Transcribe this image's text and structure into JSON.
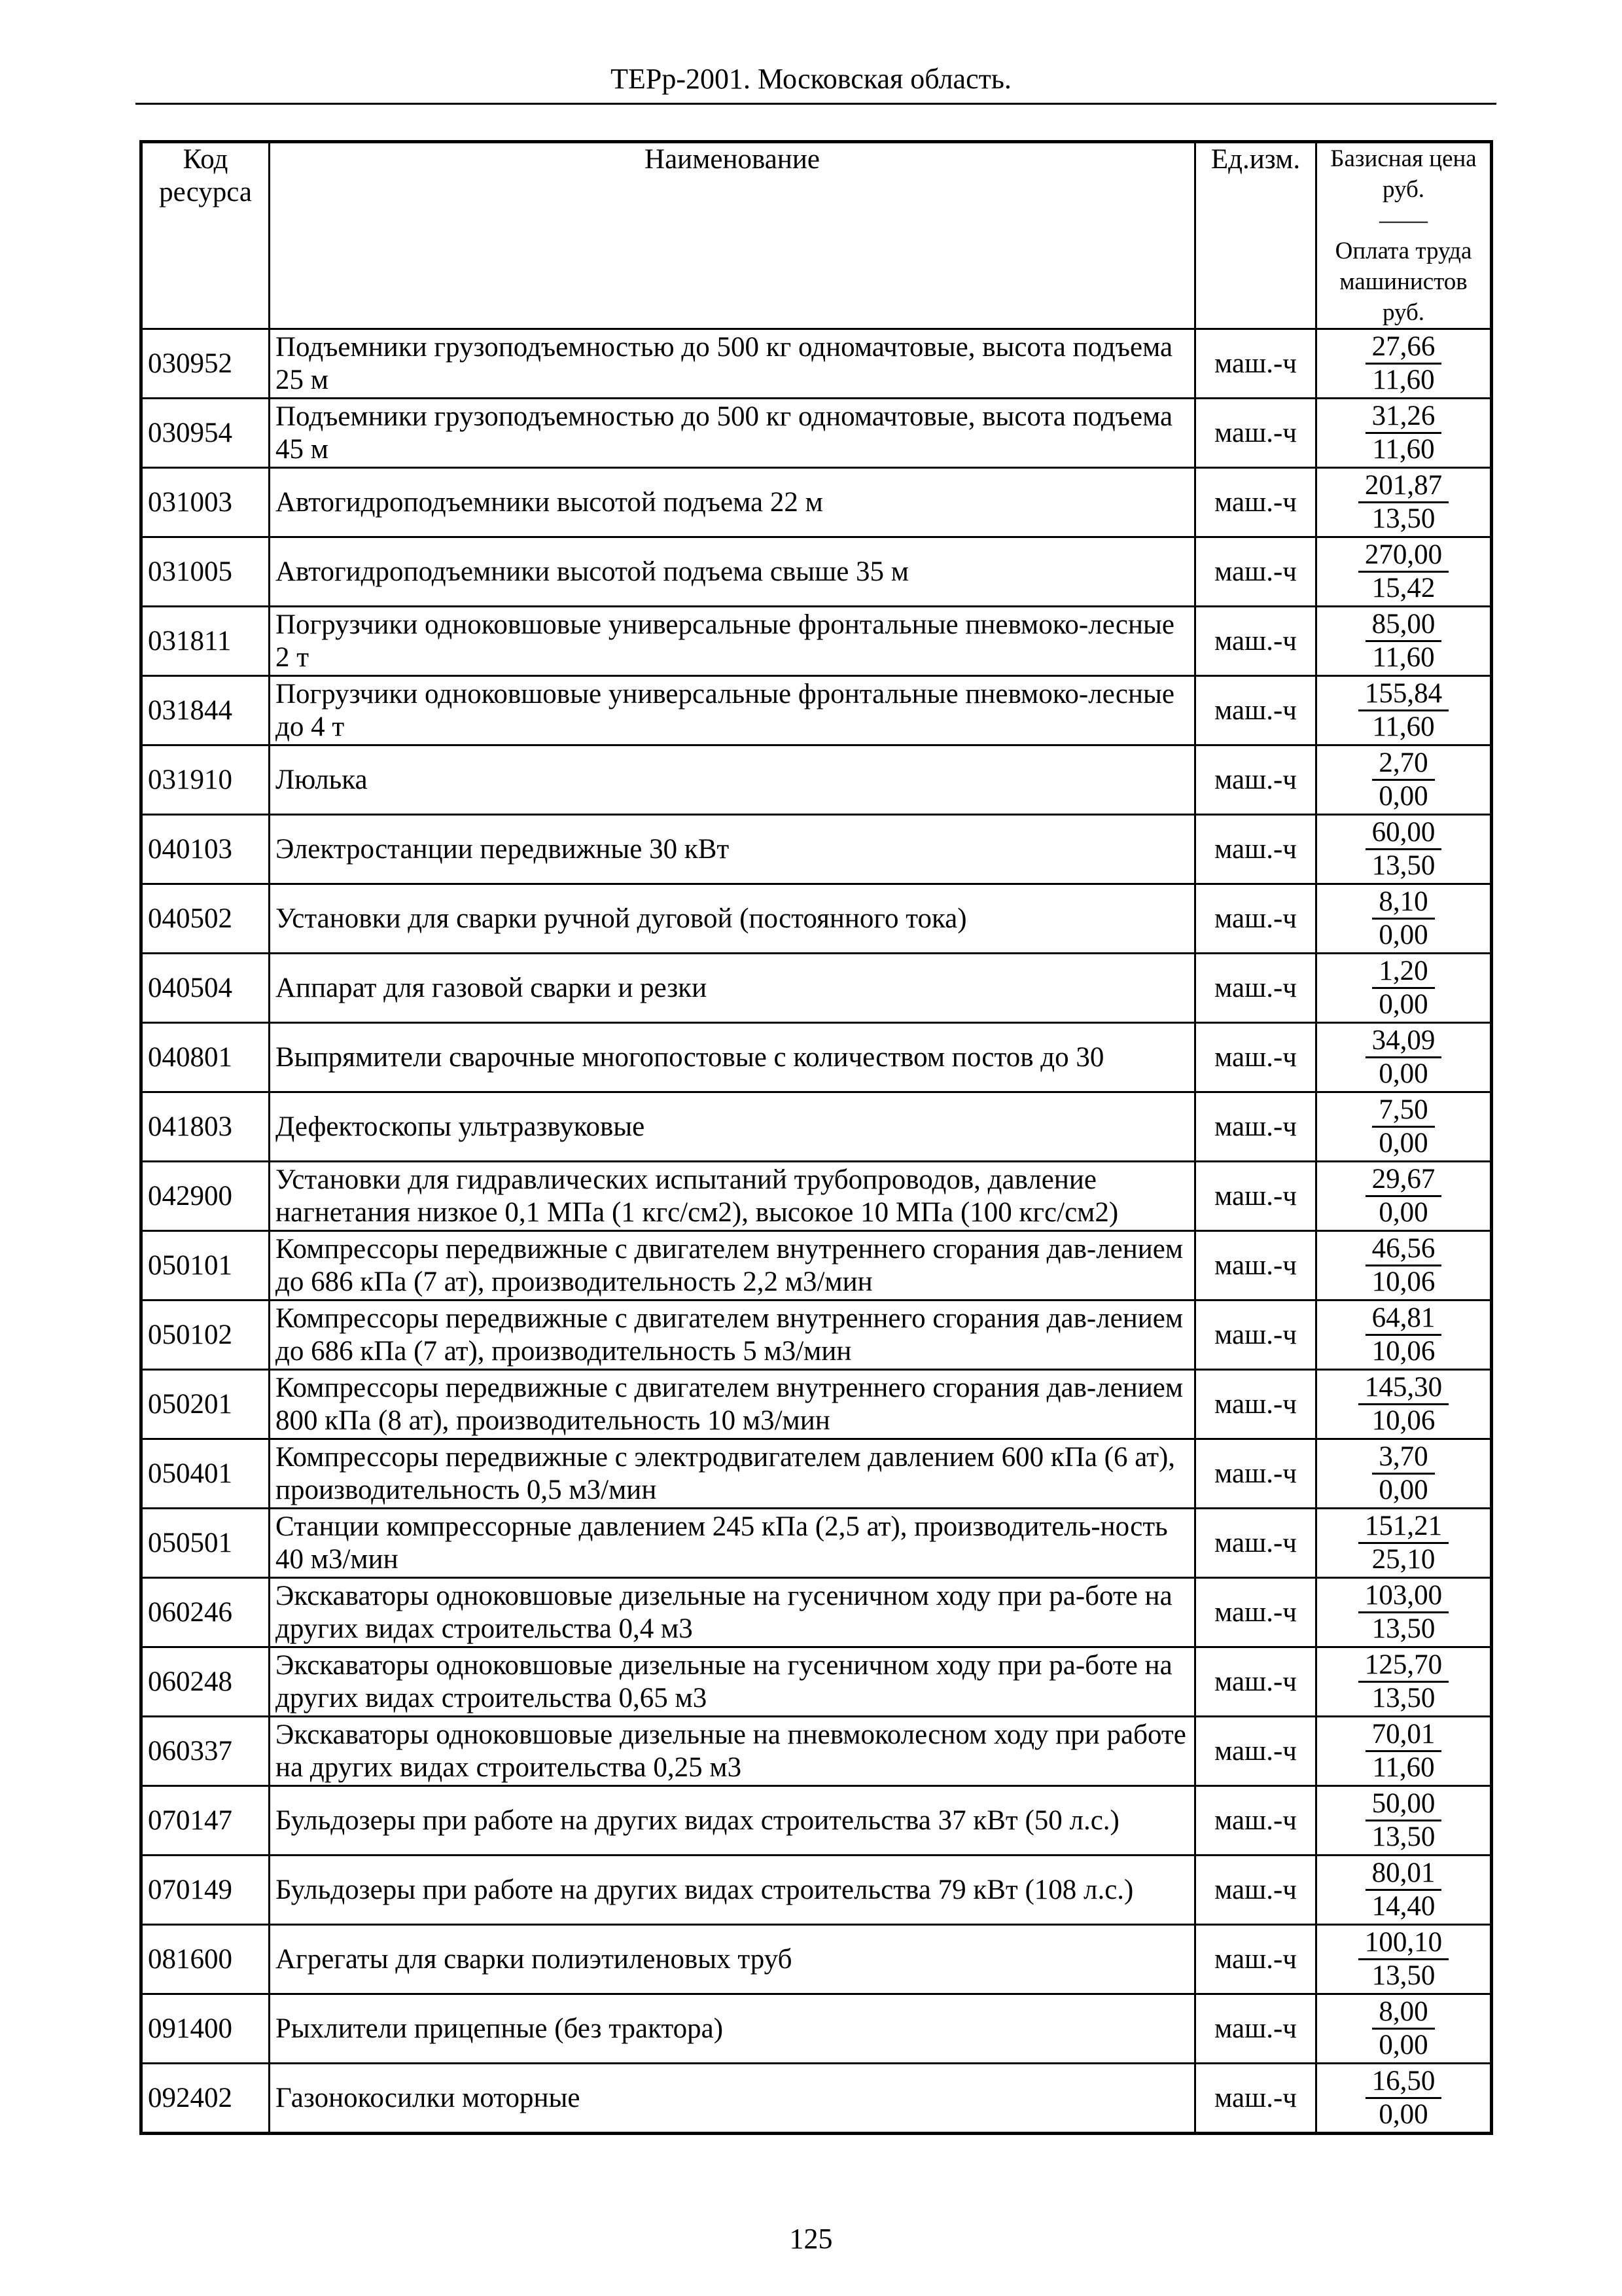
{
  "header": {
    "title": "ТЕРр-2001. Московская область."
  },
  "table": {
    "columns": {
      "code": "Код ресурса",
      "name": "Наименование",
      "unit": "Ед.изм.",
      "price_top": "Базисная цена руб.",
      "price_sep": "——",
      "price_bot": "Оплата труда машинистов руб."
    },
    "rows": [
      {
        "code": "030952",
        "name": "Подъемники грузоподъемностью до 500 кг одномачтовые, высота подъема 25 м",
        "unit": "маш.-ч",
        "price": "27,66",
        "labor": "11,60"
      },
      {
        "code": "030954",
        "name": "Подъемники грузоподъемностью до 500 кг одномачтовые, высота подъема 45 м",
        "unit": "маш.-ч",
        "price": "31,26",
        "labor": "11,60"
      },
      {
        "code": "031003",
        "name": "Автогидроподъемники высотой подъема 22 м",
        "unit": "маш.-ч",
        "price": "201,87",
        "labor": "13,50"
      },
      {
        "code": "031005",
        "name": "Автогидроподъемники высотой подъема свыше 35 м",
        "unit": "маш.-ч",
        "price": "270,00",
        "labor": "15,42"
      },
      {
        "code": "031811",
        "name": "Погрузчики одноковшовые универсальные фронтальные пневмоко-лесные 2 т",
        "unit": "маш.-ч",
        "price": "85,00",
        "labor": "11,60"
      },
      {
        "code": "031844",
        "name": "Погрузчики одноковшовые универсальные фронтальные пневмоко-лесные до 4 т",
        "unit": "маш.-ч",
        "price": "155,84",
        "labor": "11,60"
      },
      {
        "code": "031910",
        "name": "Люлька",
        "unit": "маш.-ч",
        "price": "2,70",
        "labor": "0,00"
      },
      {
        "code": "040103",
        "name": "Электростанции передвижные 30 кВт",
        "unit": "маш.-ч",
        "price": "60,00",
        "labor": "13,50"
      },
      {
        "code": "040502",
        "name": "Установки для сварки ручной дуговой (постоянного тока)",
        "unit": "маш.-ч",
        "price": "8,10",
        "labor": "0,00"
      },
      {
        "code": "040504",
        "name": "Аппарат для газовой сварки и резки",
        "unit": "маш.-ч",
        "price": "1,20",
        "labor": "0,00"
      },
      {
        "code": "040801",
        "name": "Выпрямители сварочные многопостовые с количеством постов до 30",
        "unit": "маш.-ч",
        "price": "34,09",
        "labor": "0,00"
      },
      {
        "code": "041803",
        "name": "Дефектоскопы ультразвуковые",
        "unit": "маш.-ч",
        "price": "7,50",
        "labor": "0,00"
      },
      {
        "code": "042900",
        "name": "Установки для гидравлических испытаний трубопроводов, давление нагнетания низкое 0,1 МПа (1 кгс/см2), высокое 10 МПа (100 кгс/см2)",
        "unit": "маш.-ч",
        "price": "29,67",
        "labor": "0,00"
      },
      {
        "code": "050101",
        "name": "Компрессоры передвижные с двигателем внутреннего сгорания дав-лением до 686 кПа (7 ат), производительность 2,2 м3/мин",
        "unit": "маш.-ч",
        "price": "46,56",
        "labor": "10,06"
      },
      {
        "code": "050102",
        "name": "Компрессоры передвижные с двигателем внутреннего сгорания дав-лением до 686 кПа (7 ат), производительность 5 м3/мин",
        "unit": "маш.-ч",
        "price": "64,81",
        "labor": "10,06"
      },
      {
        "code": "050201",
        "name": "Компрессоры передвижные с двигателем внутреннего сгорания дав-лением 800 кПа (8 ат), производительность 10 м3/мин",
        "unit": "маш.-ч",
        "price": "145,30",
        "labor": "10,06"
      },
      {
        "code": "050401",
        "name": "Компрессоры передвижные с электродвигателем давлением 600 кПа (6 ат), производительность 0,5 м3/мин",
        "unit": "маш.-ч",
        "price": "3,70",
        "labor": "0,00"
      },
      {
        "code": "050501",
        "name": "Станции компрессорные давлением 245 кПа (2,5 ат), производитель-ность 40 м3/мин",
        "unit": "маш.-ч",
        "price": "151,21",
        "labor": "25,10"
      },
      {
        "code": "060246",
        "name": "Экскаваторы одноковшовые дизельные на гусеничном ходу при ра-боте на других видах строительства 0,4 м3",
        "unit": "маш.-ч",
        "price": "103,00",
        "labor": "13,50"
      },
      {
        "code": "060248",
        "name": "Экскаваторы одноковшовые дизельные на гусеничном ходу при ра-боте на других видах строительства 0,65 м3",
        "unit": "маш.-ч",
        "price": "125,70",
        "labor": "13,50"
      },
      {
        "code": "060337",
        "name": "Экскаваторы одноковшовые дизельные на пневмоколесном ходу при работе на других видах строительства 0,25 м3",
        "unit": "маш.-ч",
        "price": "70,01",
        "labor": "11,60"
      },
      {
        "code": "070147",
        "name": "Бульдозеры при работе на других видах строительства 37 кВт (50 л.с.)",
        "unit": "маш.-ч",
        "price": "50,00",
        "labor": "13,50"
      },
      {
        "code": "070149",
        "name": "Бульдозеры при работе на других видах строительства 79 кВт (108 л.с.)",
        "unit": "маш.-ч",
        "price": "80,01",
        "labor": "14,40"
      },
      {
        "code": "081600",
        "name": "Агрегаты для сварки полиэтиленовых труб",
        "unit": "маш.-ч",
        "price": "100,10",
        "labor": "13,50"
      },
      {
        "code": "091400",
        "name": "Рыхлители прицепные (без трактора)",
        "unit": "маш.-ч",
        "price": "8,00",
        "labor": "0,00"
      },
      {
        "code": "092402",
        "name": "Газонокосилки моторные",
        "unit": "маш.-ч",
        "price": "16,50",
        "labor": "0,00"
      }
    ]
  },
  "footer": {
    "page_number": "125"
  }
}
